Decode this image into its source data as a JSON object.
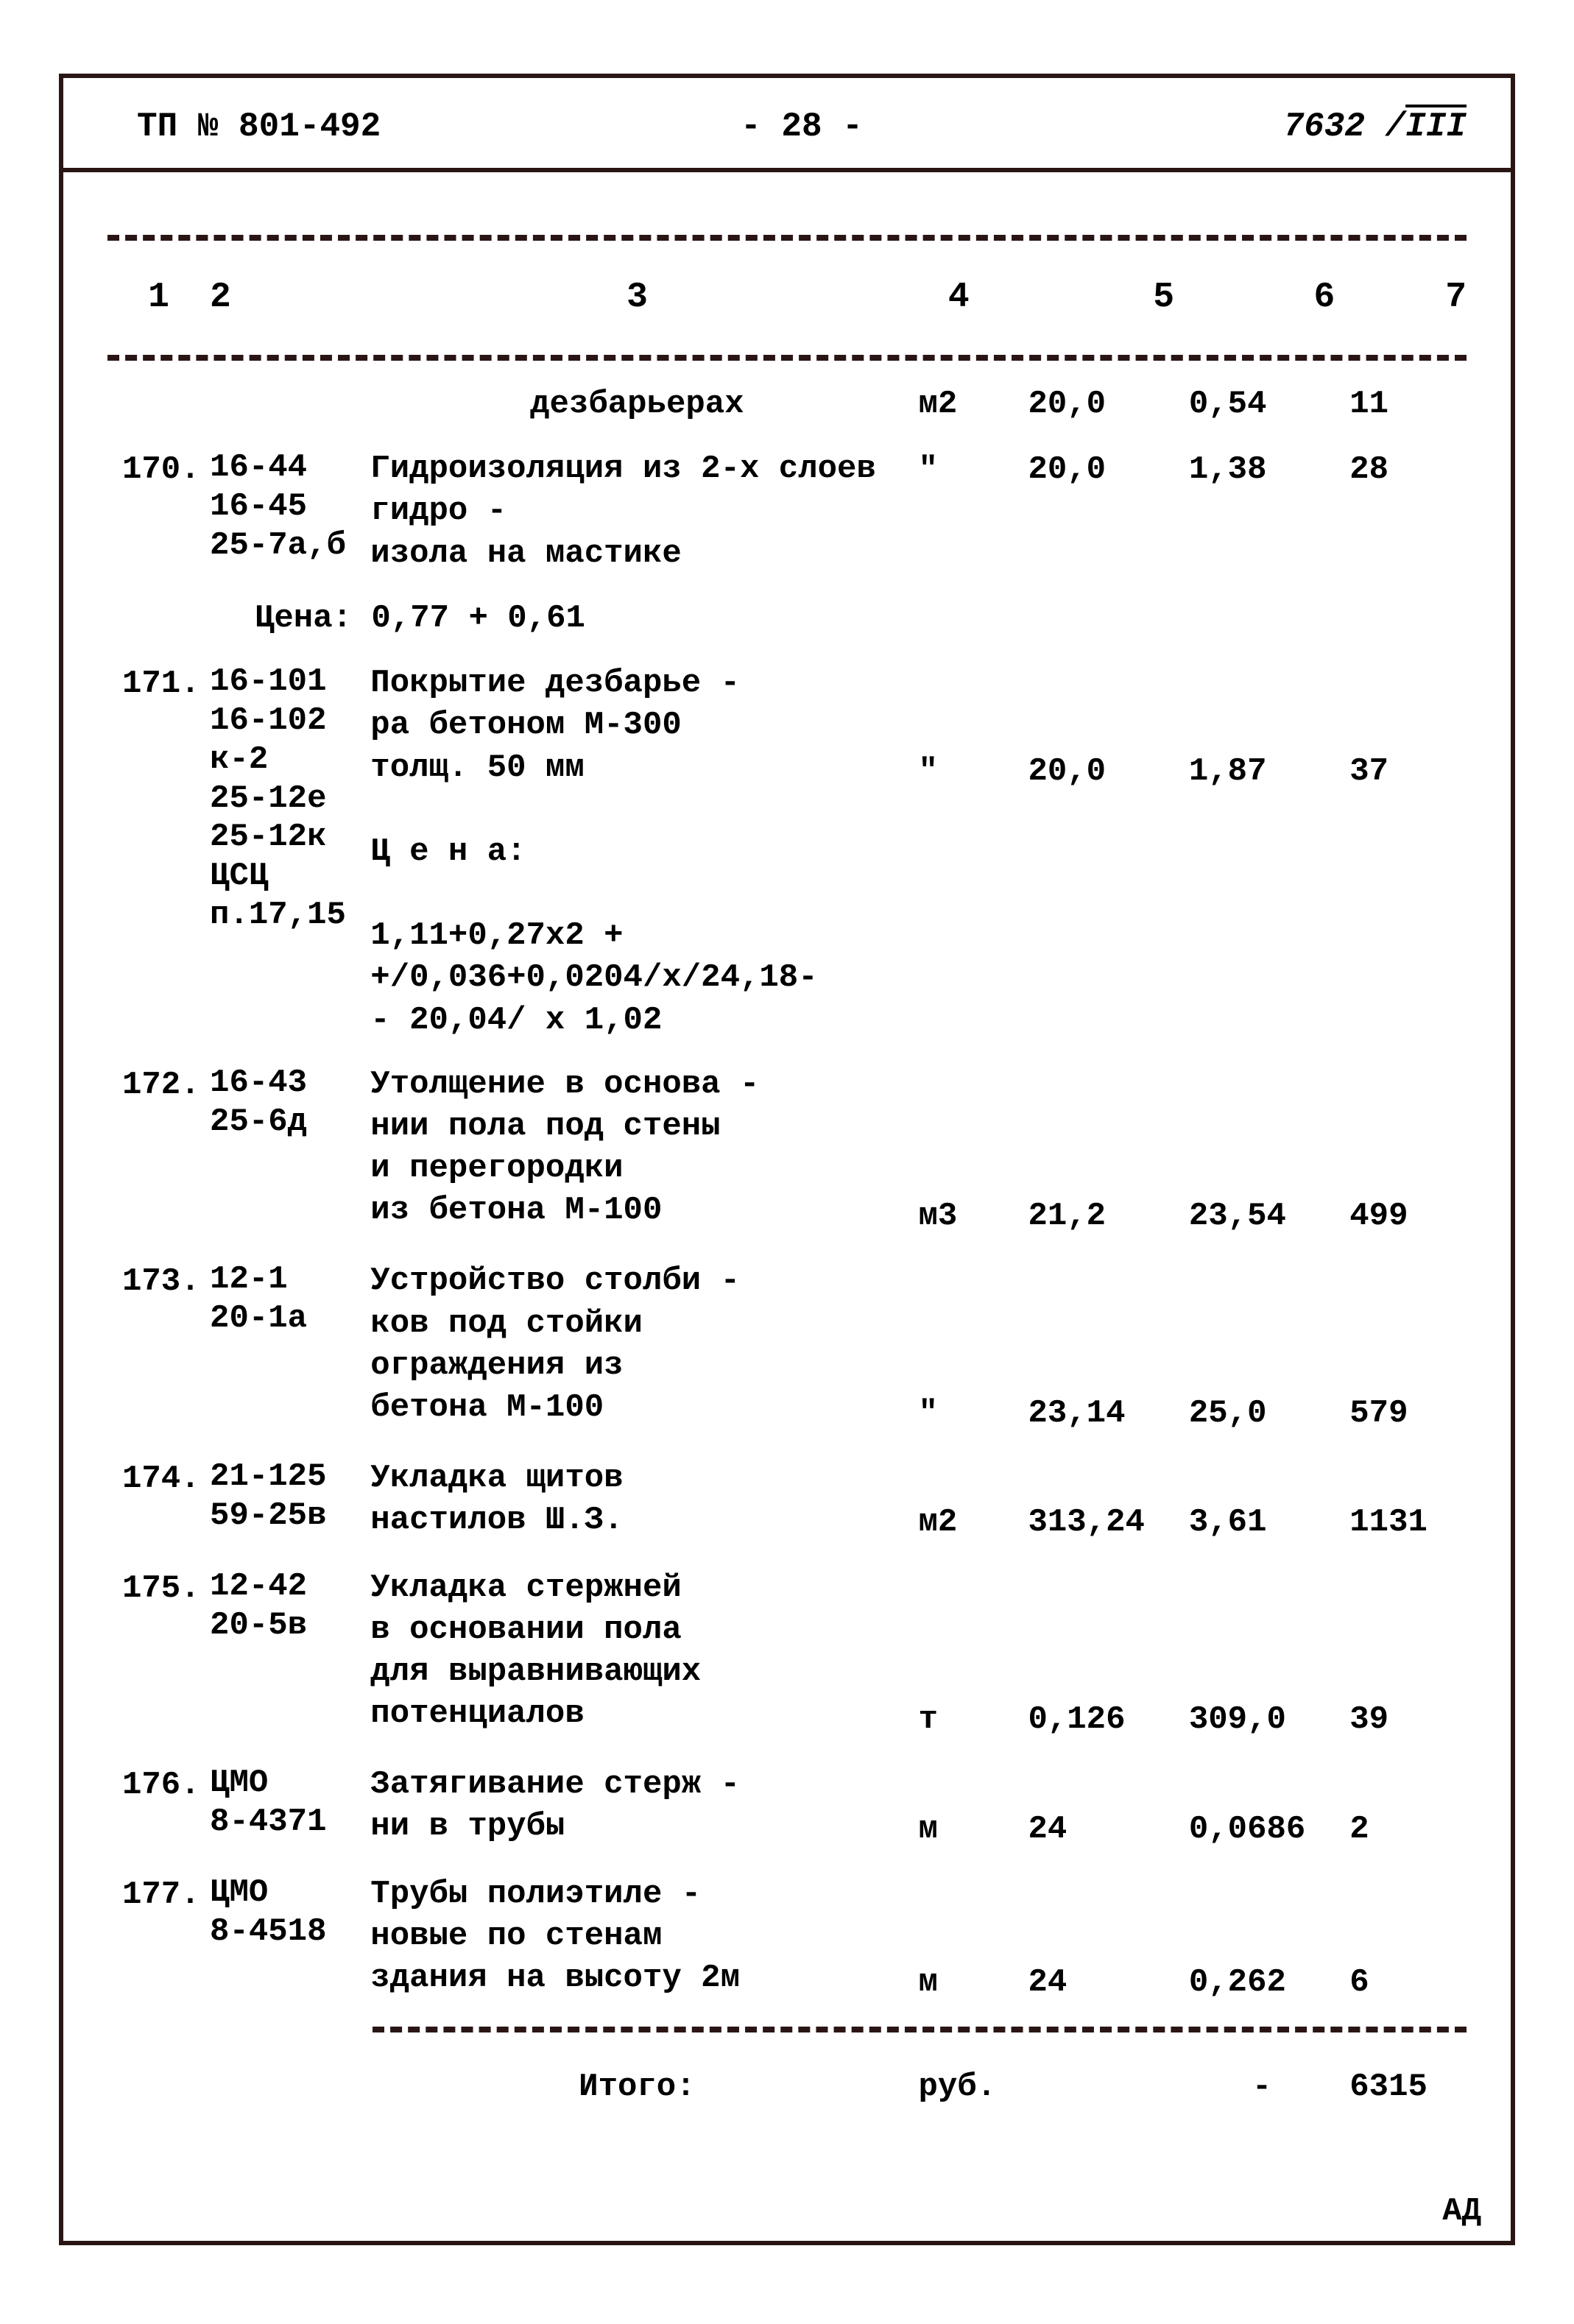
{
  "header": {
    "left": "ТП № 801-492",
    "center": "-  28  -",
    "right_num": "7632",
    "right_suffix": "III"
  },
  "columns": [
    "1",
    "2",
    "3",
    "4",
    "5",
    "6",
    "7"
  ],
  "first_row": {
    "desc": "дезбарьерах",
    "unit": "м2",
    "qty": "20,0",
    "price": "0,54",
    "sum": "11"
  },
  "rows": [
    {
      "num": "170.",
      "codes": "16-44\n16-45\n25-7а,б",
      "desc": "Гидроизоляция из 2-х слоев гидро -\nизола на мастике",
      "price_line": "Цена: 0,77 + 0,61",
      "unit": "\"",
      "qty": "20,0",
      "price": "1,38",
      "sum": "28"
    },
    {
      "num": "171.",
      "codes": "16-101\n16-102\nк-2\n25-12е\n25-12к\nЦСЦ\nп.17,15",
      "desc": "Покрытие дезбарье -\nра бетоном М-300\nтолщ. 50 мм\n\n   Ц е н а:\n\n1,11+0,27х2 +\n+/0,036+0,0204/х/24,18-\n- 20,04/ х 1,02",
      "unit": "\"",
      "qty": "20,0",
      "price": "1,87",
      "sum": "37"
    },
    {
      "num": "172.",
      "codes": "16-43\n25-6д",
      "desc": "Утолщение в основа -\nнии пола под стены\nи перегородки\nиз бетона М-100",
      "unit": "м3",
      "qty": "21,2",
      "price": "23,54",
      "sum": "499"
    },
    {
      "num": "173.",
      "codes": "12-1\n20-1а",
      "desc": "Устройство столби -\nков под стойки\nограждения из\nбетона М-100",
      "unit": "\"",
      "qty": "23,14",
      "price": "25,0",
      "sum": "579"
    },
    {
      "num": "174.",
      "codes": "21-125\n59-25в",
      "desc": "Укладка щитов\nнастилов Ш.З.",
      "unit": "м2",
      "qty": "313,24",
      "price": "3,61",
      "sum": "1131"
    },
    {
      "num": "175.",
      "codes": "12-42\n20-5в",
      "desc": "Укладка стержней\nв основании пола\nдля выравнивающих\nпотенциалов",
      "unit": "т",
      "qty": "0,126",
      "price": "309,0",
      "sum": "39"
    },
    {
      "num": "176.",
      "codes": "ЦМО\n8-4371",
      "desc": "Затягивание стерж -\nни в трубы",
      "unit": "м",
      "qty": "24",
      "price": "0,0686",
      "sum": "2"
    },
    {
      "num": "177.",
      "codes": "ЦМО\n8-4518",
      "desc": "Трубы полиэтиле -\nновые по стенам\nздания на высоту 2м",
      "unit": "м",
      "qty": "24",
      "price": "0,262",
      "sum": "6"
    }
  ],
  "total": {
    "label": "Итого:",
    "unit": "руб.",
    "dash": "-",
    "value": "6315"
  },
  "footer_mark": "АД"
}
